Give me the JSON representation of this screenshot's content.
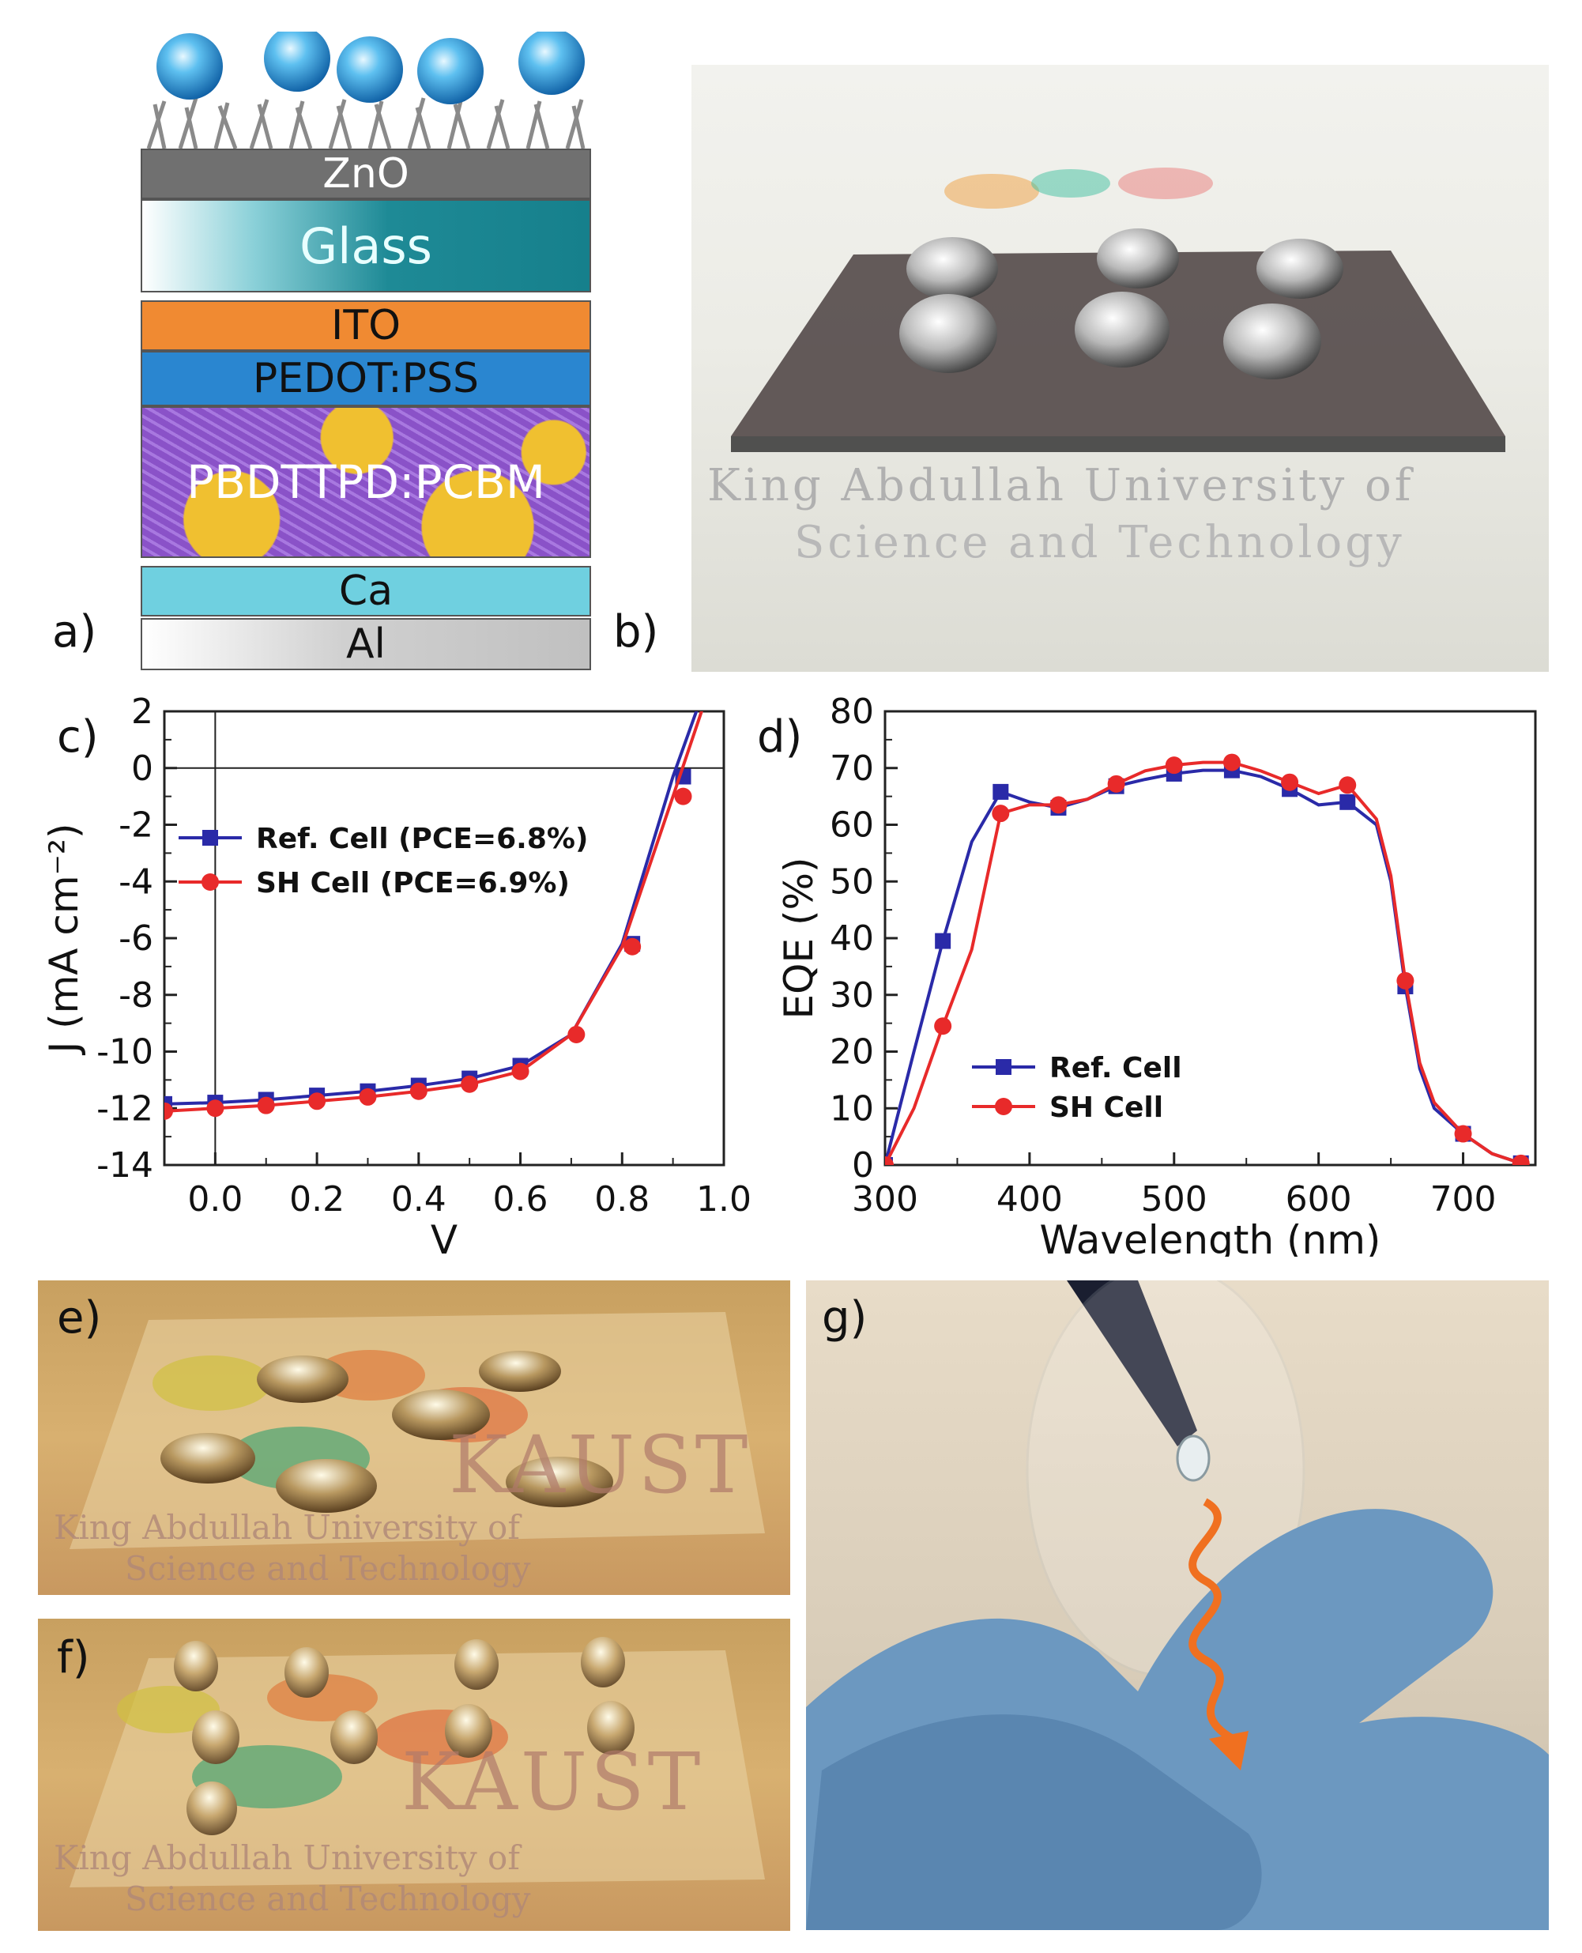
{
  "panels": {
    "a": "a)",
    "b": "b)",
    "c": "c)",
    "d": "d)",
    "e": "e)",
    "f": "f)",
    "g": "g)"
  },
  "stack": {
    "layers": [
      {
        "key": "zno",
        "label": "ZnO"
      },
      {
        "key": "glass",
        "label": "Glass"
      },
      {
        "key": "ito",
        "label": "ITO"
      },
      {
        "key": "pedot",
        "label": "PEDOT:PSS"
      },
      {
        "key": "active",
        "label": "PBDTTPD:PCBM"
      },
      {
        "key": "ca",
        "label": "Ca"
      },
      {
        "key": "al",
        "label": "Al"
      }
    ],
    "colors": {
      "zno": "#6f6f6f",
      "glass": "#1e8a96",
      "ito": "#f08a32",
      "pedot": "#2a86d0",
      "active": "#8a52c8",
      "ca": "#6fd0e0",
      "al": "#c8c8c8",
      "droplet": "#2aa0e0"
    }
  },
  "photos": {
    "b_text": [
      "King Abdullah University of",
      "Science and Technology"
    ],
    "e_text": [
      "KAUST",
      "King Abdullah University of",
      "Science and Technology"
    ],
    "f_text": [
      "KAUST",
      "King Abdullah University of",
      "Science and Technology"
    ]
  },
  "chart_data": [
    {
      "type": "line",
      "xlabel": "V",
      "ylabel": "J (mA cm⁻²)",
      "xlim": [
        -0.1,
        1.0
      ],
      "ylim": [
        -14,
        2
      ],
      "xticks": [
        "0.0",
        "0.2",
        "0.4",
        "0.6",
        "0.8",
        "1.0"
      ],
      "yticks": [
        "2",
        "0",
        "-2",
        "-4",
        "-6",
        "-8",
        "-10",
        "-12",
        "-14"
      ],
      "legend_position": "center-left",
      "series": [
        {
          "name": "Ref. Cell (PCE=6.8%)",
          "color": "#2a2aa8",
          "marker": "square",
          "x": [
            -0.1,
            0.0,
            0.1,
            0.2,
            0.3,
            0.4,
            0.5,
            0.6,
            0.7,
            0.8,
            0.9,
            0.95
          ],
          "y": [
            -11.85,
            -11.8,
            -11.7,
            -11.55,
            -11.4,
            -11.2,
            -10.95,
            -10.5,
            -9.4,
            -6.2,
            -0.3,
            2.2
          ],
          "markers_x": [
            -0.1,
            0.0,
            0.1,
            0.2,
            0.3,
            0.4,
            0.5,
            0.6,
            0.82,
            0.92
          ],
          "markers_y": [
            -11.85,
            -11.8,
            -11.7,
            -11.55,
            -11.4,
            -11.2,
            -10.95,
            -10.5,
            -6.2,
            -0.3
          ]
        },
        {
          "name": "SH Cell (PCE=6.9%)",
          "color": "#e82a2a",
          "marker": "circle",
          "x": [
            -0.1,
            0.0,
            0.1,
            0.2,
            0.3,
            0.4,
            0.5,
            0.6,
            0.7,
            0.8,
            0.9,
            0.96
          ],
          "y": [
            -12.1,
            -12.0,
            -11.9,
            -11.75,
            -11.6,
            -11.4,
            -11.15,
            -10.7,
            -9.4,
            -6.3,
            -1.0,
            2.2
          ],
          "markers_x": [
            -0.1,
            0.0,
            0.1,
            0.2,
            0.3,
            0.4,
            0.5,
            0.6,
            0.71,
            0.82,
            0.92
          ],
          "markers_y": [
            -12.1,
            -12.0,
            -11.9,
            -11.75,
            -11.6,
            -11.4,
            -11.15,
            -10.7,
            -9.4,
            -6.3,
            -1.0
          ]
        }
      ]
    },
    {
      "type": "line",
      "xlabel": "Wavelength (nm)",
      "ylabel": "EQE (%)",
      "xlim": [
        300,
        750
      ],
      "ylim": [
        0,
        80
      ],
      "xticks": [
        "300",
        "400",
        "500",
        "600",
        "700"
      ],
      "yticks": [
        "80",
        "70",
        "60",
        "50",
        "40",
        "30",
        "20",
        "10",
        "0"
      ],
      "legend_position": "bottom-left",
      "series": [
        {
          "name": "Ref. Cell",
          "color": "#2a2aa8",
          "marker": "square",
          "x": [
            300,
            320,
            340,
            360,
            380,
            400,
            420,
            440,
            460,
            480,
            500,
            520,
            540,
            560,
            580,
            600,
            620,
            640,
            650,
            660,
            670,
            680,
            700,
            720,
            740
          ],
          "y": [
            0,
            20,
            39.5,
            57,
            65.8,
            64,
            63,
            64.5,
            66.8,
            68,
            69,
            69.6,
            69.6,
            68.5,
            66.3,
            63.5,
            64,
            60,
            50,
            31.5,
            17,
            10,
            5.5,
            2,
            0.3
          ],
          "markers_x": [
            300,
            340,
            380,
            420,
            460,
            500,
            540,
            580,
            620,
            660,
            700,
            740
          ],
          "markers_y": [
            0,
            39.5,
            65.8,
            63,
            66.8,
            69,
            69.6,
            66.3,
            64,
            31.5,
            5.5,
            0.3
          ]
        },
        {
          "name": "SH Cell",
          "color": "#e82a2a",
          "marker": "circle",
          "x": [
            300,
            320,
            340,
            360,
            380,
            400,
            420,
            440,
            460,
            480,
            500,
            520,
            540,
            560,
            580,
            600,
            620,
            640,
            650,
            660,
            670,
            680,
            700,
            720,
            740
          ],
          "y": [
            0,
            10,
            24.5,
            38,
            62,
            63.5,
            63.5,
            64.5,
            67.2,
            69.5,
            70.5,
            71,
            71,
            69.5,
            67.5,
            65.5,
            67,
            61,
            51,
            32.5,
            18,
            11,
            5.5,
            2,
            0.3
          ],
          "markers_x": [
            300,
            340,
            380,
            420,
            460,
            500,
            540,
            580,
            620,
            660,
            700,
            740
          ],
          "markers_y": [
            0,
            24.5,
            62,
            63.5,
            67.2,
            70.5,
            71,
            67.5,
            67,
            32.5,
            5.5,
            0.3
          ]
        }
      ]
    }
  ]
}
